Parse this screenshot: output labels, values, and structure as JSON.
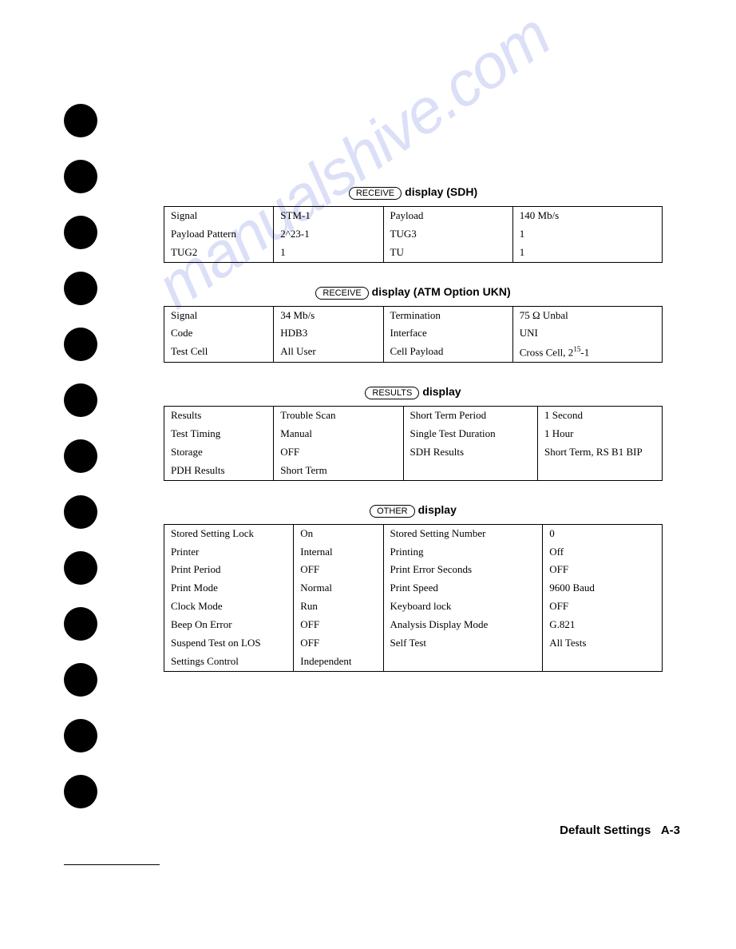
{
  "watermark_text": "manualshive.com",
  "footer": {
    "label": "Default Settings",
    "page": "A-3"
  },
  "sections": [
    {
      "button": "RECEIVE",
      "title_suffix": "display (SDH)",
      "table_class": "t1",
      "rows": [
        [
          "Signal",
          "STM-1",
          "Payload",
          "140 Mb/s"
        ],
        [
          "Payload Pattern",
          "2^23-1",
          "TUG3",
          "1"
        ],
        [
          "TUG2",
          "1",
          "TU",
          "1"
        ]
      ]
    },
    {
      "button": "RECEIVE",
      "title_suffix": "display (ATM Option UKN)",
      "table_class": "t2",
      "rows": [
        [
          "Signal",
          "34 Mb/s",
          "Termination",
          "75 Ω Unbal"
        ],
        [
          "Code",
          "HDB3",
          "Interface",
          "UNI"
        ],
        [
          "Test Cell",
          "All User",
          "Cell Payload",
          "Cross Cell, 2<sup>15</sup>-1"
        ]
      ]
    },
    {
      "button": "RESULTS",
      "title_suffix": "display",
      "table_class": "t3",
      "rows": [
        [
          "Results",
          "Trouble Scan",
          "Short Term Period",
          "1 Second"
        ],
        [
          "Test Timing",
          "Manual",
          "Single Test Duration",
          "1 Hour"
        ],
        [
          "Storage",
          "OFF",
          "SDH Results",
          "Short Term, RS B1 BIP"
        ],
        [
          "PDH Results",
          "Short Term",
          "",
          ""
        ]
      ]
    },
    {
      "button": "OTHER",
      "title_suffix": "display",
      "table_class": "t4",
      "rows": [
        [
          "Stored Setting Lock",
          "On",
          "Stored Setting Number",
          "0"
        ],
        [
          "Printer",
          "Internal",
          "Printing",
          "Off"
        ],
        [
          "Print Period",
          "OFF",
          "Print Error Seconds",
          "OFF"
        ],
        [
          "Print Mode",
          "Normal",
          "Print Speed",
          "9600 Baud"
        ],
        [
          "Clock Mode",
          "Run",
          "Keyboard lock",
          "OFF"
        ],
        [
          "Beep On Error",
          "OFF",
          "Analysis Display Mode",
          "G.821"
        ],
        [
          "Suspend Test on LOS",
          "OFF",
          "Self Test",
          "All Tests"
        ],
        [
          "Settings Control",
          "Independent",
          "",
          ""
        ]
      ]
    }
  ]
}
